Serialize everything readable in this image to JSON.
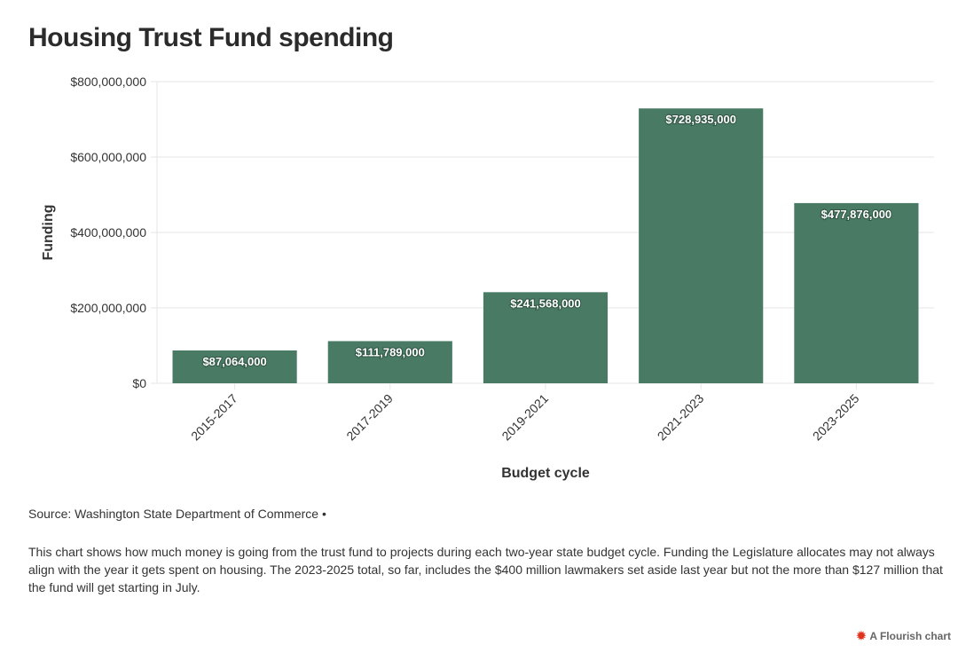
{
  "chart_data": {
    "type": "bar",
    "title": "Housing Trust Fund spending",
    "xlabel": "Budget cycle",
    "ylabel": "Funding",
    "categories": [
      "2015-2017",
      "2017-2019",
      "2019-2021",
      "2021-2023",
      "2023-2025"
    ],
    "values": [
      87064000,
      111789000,
      241568000,
      728935000,
      477876000
    ],
    "value_labels": [
      "$87,064,000",
      "$111,789,000",
      "$241,568,000",
      "$728,935,000",
      "$477,876,000"
    ],
    "ylim": [
      0,
      800000000
    ],
    "yticks": [
      0,
      200000000,
      400000000,
      600000000,
      800000000
    ],
    "ytick_labels": [
      "$0",
      "$200,000,000",
      "$400,000,000",
      "$600,000,000",
      "$800,000,000"
    ],
    "grid": true,
    "bar_color": "#497a64"
  },
  "footer": {
    "source": "Source: Washington State Department of Commerce •",
    "note": "This chart shows how much money is going from the trust fund to projects during each two-year state budget cycle. Funding the Legislature allocates may not always align with the year it gets spent on housing. The 2023-2025 total, so far, includes the $400 million lawmakers set aside last year but not the more than $127 million that the fund will get starting in July.",
    "credit": "A Flourish chart",
    "credit_icon": "flourish-logo-icon"
  }
}
